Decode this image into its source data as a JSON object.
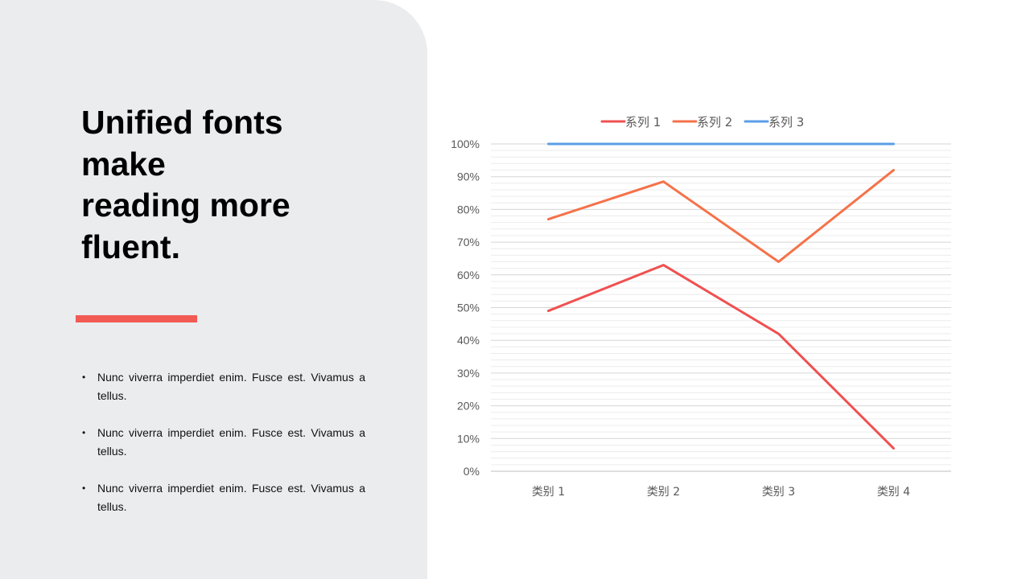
{
  "headline": "Unified fonts\nmake\nreading more\nfluent.",
  "colors": {
    "panel_bg": "#ebecee",
    "accent": "#f25a54",
    "series1": "#ef5151",
    "series2": "#f5724a",
    "series3": "#5b9ee6"
  },
  "bullets": [
    "Nunc viverra imperdiet enim. Fusce est. Vivamus a tellus.",
    "Nunc viverra imperdiet enim. Fusce est. Vivamus a tellus.",
    "Nunc viverra imperdiet enim. Fusce est. Vivamus a tellus."
  ],
  "chart_data": {
    "type": "line",
    "title": "",
    "xlabel": "",
    "ylabel": "",
    "categories": [
      "类别 1",
      "类别 2",
      "类别 3",
      "类别 4"
    ],
    "ylim": [
      0,
      100
    ],
    "yticks": [
      "0%",
      "10%",
      "20%",
      "30%",
      "40%",
      "50%",
      "60%",
      "70%",
      "80%",
      "90%",
      "100%"
    ],
    "grid": true,
    "legend_position": "top",
    "series": [
      {
        "name": "系列 1",
        "values": [
          49,
          63,
          42,
          7
        ],
        "color": "#ef5151"
      },
      {
        "name": "系列 2",
        "values": [
          77,
          88.5,
          64,
          92
        ],
        "color": "#f5724a"
      },
      {
        "name": "系列 3",
        "values": [
          100,
          100,
          100,
          100
        ],
        "color": "#5b9ee6"
      }
    ]
  }
}
